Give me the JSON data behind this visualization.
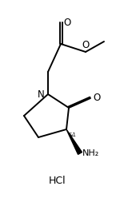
{
  "bg_color": "#ffffff",
  "line_color": "#000000",
  "line_width": 1.4,
  "figsize": [
    1.45,
    2.48
  ],
  "dpi": 100,
  "hcl_text": "HCl",
  "nh2_text": "NH₂",
  "n_text": "N",
  "o_ring_text": "O",
  "o_ester_text": "O",
  "o_ester2_text": "O",
  "and1_text": "&1",
  "font_size_label": 7.5,
  "font_size_hcl": 9
}
